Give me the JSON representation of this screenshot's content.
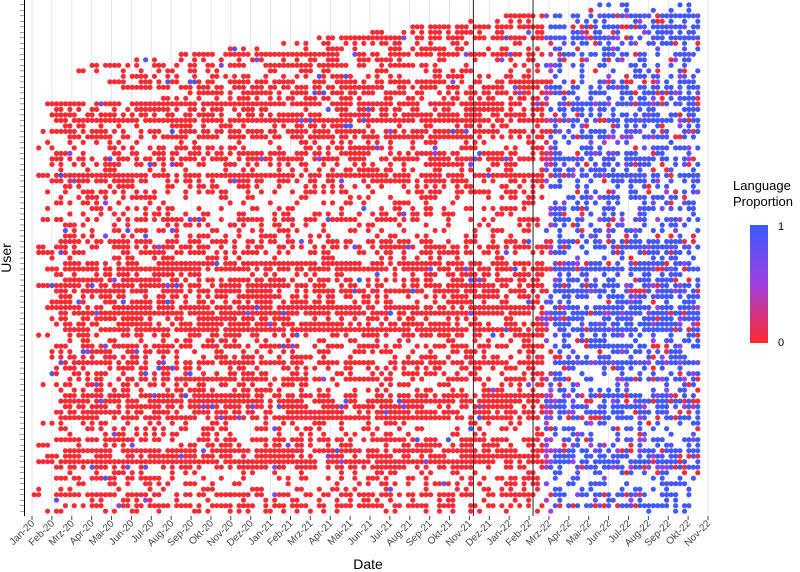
{
  "chart_data": {
    "type": "scatter",
    "title": "",
    "xlabel": "Date",
    "ylabel": "User",
    "x_tick_labels": [
      "Jan-20",
      "Feb-20",
      "Mrz-20",
      "Apr-20",
      "Mai-20",
      "Jun-20",
      "Jul-20",
      "Aug-20",
      "Sep-20",
      "Okt-20",
      "Nov-20",
      "Dez-20",
      "Jan-21",
      "Feb-21",
      "Mrz-21",
      "Apr-21",
      "Mai-21",
      "Jun-21",
      "Jul-21",
      "Aug-21",
      "Sep-21",
      "Okt-21",
      "Nov-21",
      "Dez-21",
      "Jan-22",
      "Feb-22",
      "Mrz-22",
      "Apr-22",
      "Mai-22",
      "Jun-22",
      "Jul-22",
      "Aug-22",
      "Sep-22",
      "Okt-22",
      "Nov-22"
    ],
    "xlim": [
      "Jan-20",
      "Nov-22"
    ],
    "y_tick_labels": [],
    "vertical_reference_lines": [
      "Nov-21",
      "Feb-22"
    ],
    "grid": true,
    "legend": {
      "title_lines": [
        "Language",
        "Proportion"
      ],
      "type": "continuous",
      "min_label": "0",
      "max_label": "1",
      "min_color": "#ff2a2a",
      "max_color": "#3a5bff",
      "placement": "right"
    },
    "approx_user_count": 93,
    "approx_week_count": 150,
    "note": "Each point is a user-week. Points are mostly red (proportion ~0) before Mrz-22 and mostly blue (proportion ~1) afterwards."
  }
}
